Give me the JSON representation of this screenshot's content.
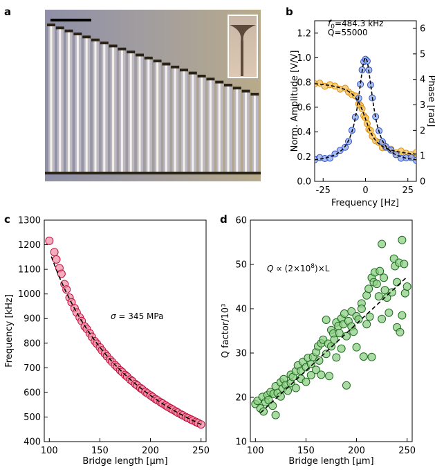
{
  "panel_letters": {
    "a": "a",
    "b": "b",
    "c": "c",
    "d": "d"
  },
  "colors": {
    "pink_face": "#f08aa3",
    "pink_edge": "#c0103c",
    "green_face": "#8fcf85",
    "green_edge": "#1e6b1e",
    "blue_face": "#8fa8ee",
    "blue_edge": "#2f52c7",
    "orange_face": "#f7c25a",
    "orange_edge": "#d9900c"
  },
  "panel_a": {
    "type": "image",
    "description_icon": "micrograph-of-bridges"
  },
  "chart_data": [
    {
      "panel": "b",
      "type": "line",
      "xlabel": "Frequency [Hz]",
      "ylabel": "Norm. Amplitude [V/V]",
      "ylabel_right": "Phase [rad]",
      "xlim": [
        -30,
        30
      ],
      "ylim": [
        0,
        1.3
      ],
      "ylim_right": [
        0,
        6.3
      ],
      "xticks": [
        -25,
        0,
        25
      ],
      "yticks": [
        0.0,
        0.2,
        0.4,
        0.6,
        0.8,
        1.0,
        1.2
      ],
      "yticks_right": [
        0,
        1,
        2,
        3,
        4,
        5,
        6
      ],
      "annotation_f0": "f0=484.3 kHz",
      "annotation_f0_prefix": "f",
      "annotation_f0_sub": "0",
      "annotation_f0_value": "=484.3 kHz",
      "annotation_q": "Q=55000",
      "f0_hz": 484300,
      "Q": 55000,
      "series": [
        {
          "name": "amplitude",
          "axis": "left",
          "color": "blue",
          "x": [
            -30,
            -27,
            -24,
            -21,
            -18,
            -15,
            -12,
            -10,
            -8,
            -6,
            -4,
            -3,
            -2,
            -1,
            0,
            1,
            2,
            3,
            4,
            6,
            8,
            10,
            12,
            15,
            18,
            21,
            24,
            27,
            30
          ]
        },
        {
          "name": "phase",
          "axis": "right",
          "color": "orange",
          "x": [
            -30,
            -27,
            -24,
            -21,
            -18,
            -15,
            -12,
            -10,
            -8,
            -6,
            -4,
            -3,
            -2,
            -1,
            0,
            1,
            2,
            3,
            4,
            6,
            8,
            10,
            12,
            15,
            18,
            21,
            24,
            27,
            30
          ]
        }
      ]
    },
    {
      "panel": "c",
      "type": "scatter",
      "xlabel": "Bridge length [μm]",
      "ylabel": "Frequency [kHz]",
      "xlim": [
        95,
        255
      ],
      "ylim": [
        400,
        1300
      ],
      "xticks": [
        100,
        150,
        200,
        250
      ],
      "yticks": [
        400,
        500,
        600,
        700,
        800,
        900,
        1000,
        1100,
        1200,
        1300
      ],
      "annotation": "σ = 345 MPa",
      "annotation_symbol": "σ",
      "annotation_value": " = 345 MPa",
      "fit": {
        "model": "1/L",
        "A_khz_um": 117500
      },
      "x": [
        100,
        105,
        107,
        110,
        112,
        115,
        117,
        120,
        122,
        125,
        127,
        130,
        132,
        135,
        137,
        140,
        142,
        145,
        147,
        150,
        152,
        155,
        157,
        160,
        162,
        165,
        167,
        170,
        172,
        175,
        177,
        180,
        182,
        185,
        187,
        190,
        192,
        195,
        197,
        200,
        202,
        205,
        207,
        210,
        212,
        215,
        217,
        220,
        222,
        225,
        227,
        230,
        232,
        235,
        237,
        240,
        242,
        245,
        247,
        250
      ],
      "y": [
        1216,
        1170,
        1140,
        1105,
        1082,
        1040,
        1018,
        985,
        966,
        942,
        925,
        905,
        890,
        868,
        858,
        840,
        826,
        808,
        798,
        783,
        771,
        757,
        747,
        733,
        724,
        711,
        703,
        690,
        683,
        671,
        664,
        652,
        646,
        634,
        628,
        618,
        612,
        602,
        596,
        588,
        582,
        573,
        568,
        560,
        555,
        547,
        542,
        535,
        530,
        523,
        518,
        511,
        507,
        500,
        496,
        490,
        486,
        480,
        476,
        470
      ]
    },
    {
      "panel": "d",
      "type": "scatter",
      "xlabel": "Bridge length [μm]",
      "ylabel": "Q factor/10³",
      "xlim": [
        95,
        255
      ],
      "ylim": [
        10,
        60
      ],
      "xticks": [
        100,
        150,
        200,
        250
      ],
      "yticks": [
        10,
        20,
        30,
        40,
        50,
        60
      ],
      "annotation": "Q ∝ (2×10⁸)×L",
      "annotation_q": "Q",
      "annotation_prop": " ∝  (2×10",
      "annotation_exp": "8",
      "annotation_tail": ")×L",
      "fit": {
        "model": "linear",
        "x": [
          105,
          250
        ],
        "y": [
          16.5,
          47.2
        ]
      },
      "x": [
        100,
        102,
        105,
        107,
        108,
        110,
        112,
        113,
        115,
        117,
        118,
        120,
        120,
        122,
        125,
        125,
        127,
        128,
        130,
        132,
        135,
        135,
        137,
        140,
        140,
        142,
        145,
        145,
        147,
        150,
        150,
        152,
        155,
        155,
        157,
        160,
        160,
        162,
        163,
        165,
        165,
        167,
        170,
        170,
        172,
        173,
        175,
        175,
        177,
        178,
        180,
        180,
        182,
        183,
        185,
        185,
        187,
        188,
        190,
        190,
        192,
        195,
        195,
        197,
        200,
        200,
        202,
        205,
        205,
        207,
        210,
        210,
        212,
        213,
        215,
        215,
        217,
        218,
        220,
        222,
        223,
        225,
        225,
        227,
        228,
        230,
        232,
        235,
        237,
        238,
        240,
        240,
        242,
        243,
        245,
        245,
        247,
        248,
        250
      ],
      "y": [
        18.5,
        19.2,
        17.5,
        20.1,
        16.8,
        18.9,
        20.5,
        19.4,
        21.2,
        18.1,
        20.8,
        16.0,
        22.5,
        21.0,
        23.4,
        20.2,
        22.0,
        24.1,
        22.8,
        21.5,
        25.1,
        23.2,
        24.6,
        25.9,
        22.1,
        27.2,
        26.0,
        24.2,
        28.0,
        26.8,
        23.5,
        28.9,
        27.5,
        25.0,
        29.1,
        30.2,
        26.2,
        31.5,
        28.3,
        32.2,
        25.1,
        33.0,
        29.8,
        37.5,
        32.1,
        24.8,
        31.5,
        35.2,
        34.4,
        33.0,
        36.9,
        29.0,
        36.1,
        34.5,
        37.8,
        31.0,
        36.5,
        38.9,
        33.8,
        22.7,
        37.2,
        39.4,
        36.0,
        34.8,
        38.3,
        31.3,
        37.6,
        41.2,
        40.0,
        29.2,
        43.0,
        36.5,
        44.5,
        38.2,
        47.0,
        29.1,
        46.0,
        48.2,
        45.6,
        42.8,
        48.5,
        54.6,
        37.7,
        47.0,
        44.2,
        42.5,
        39.1,
        43.7,
        51.3,
        49.6,
        35.8,
        46.0,
        50.4,
        34.7,
        55.5,
        38.5,
        50.1,
        43.5,
        45.0
      ]
    }
  ]
}
